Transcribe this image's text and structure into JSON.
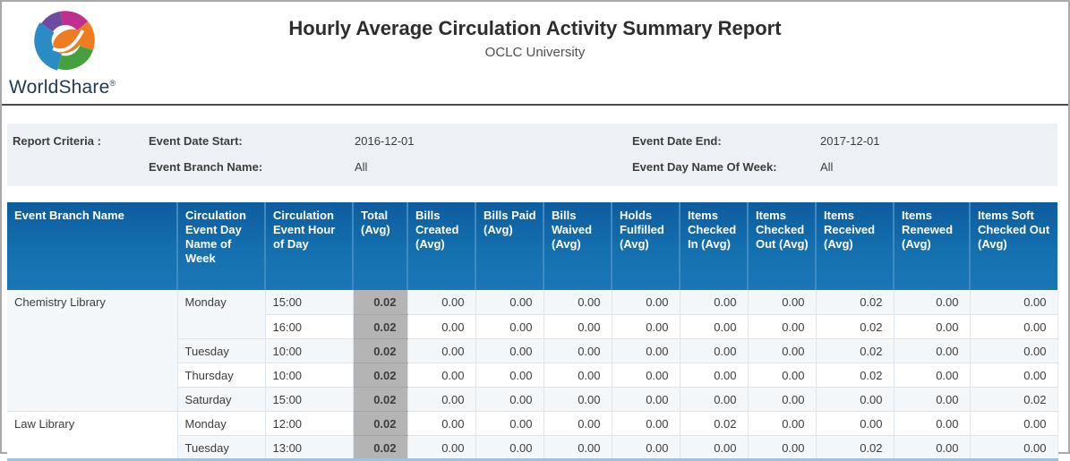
{
  "brand": {
    "name": "WorldShare",
    "registered_mark": "®",
    "logo": "worldshare-globe-logo"
  },
  "header": {
    "title": "Hourly Average Circulation Activity Summary Report",
    "subtitle": "OCLC University"
  },
  "criteria": {
    "section_label": "Report Criteria :",
    "fields": [
      {
        "label": "Event Date Start:",
        "value": "2016-12-01"
      },
      {
        "label": "Event Date End:",
        "value": "2017-12-01"
      },
      {
        "label": "Event Branch Name:",
        "value": "All"
      },
      {
        "label": "Event Day Name Of Week:",
        "value": "All"
      }
    ]
  },
  "table": {
    "columns": [
      "Event Branch Name",
      "Circulation Event Day Name of Week",
      "Circulation Event Hour of Day",
      "Total (Avg)",
      "Bills Created (Avg)",
      "Bills Paid (Avg)",
      "Bills Waived (Avg)",
      "Holds Fulfilled (Avg)",
      "Items Checked In (Avg)",
      "Items Checked Out (Avg)",
      "Items Received (Avg)",
      "Items Renewed (Avg)",
      "Items Soft Checked Out (Avg)"
    ],
    "rows": [
      {
        "branch": "Chemistry Library",
        "branch_span": 5,
        "day": "Monday",
        "day_span": 2,
        "hour": "15:00",
        "total": "0.02",
        "values": [
          "0.00",
          "0.00",
          "0.00",
          "0.00",
          "0.00",
          "0.00",
          "0.02",
          "0.00",
          "0.00"
        ]
      },
      {
        "hour": "16:00",
        "total": "0.02",
        "values": [
          "0.00",
          "0.00",
          "0.00",
          "0.00",
          "0.00",
          "0.00",
          "0.02",
          "0.00",
          "0.00"
        ]
      },
      {
        "day": "Tuesday",
        "day_span": 1,
        "hour": "10:00",
        "total": "0.02",
        "values": [
          "0.00",
          "0.00",
          "0.00",
          "0.00",
          "0.00",
          "0.00",
          "0.02",
          "0.00",
          "0.00"
        ]
      },
      {
        "day": "Thursday",
        "day_span": 1,
        "hour": "10:00",
        "total": "0.02",
        "values": [
          "0.00",
          "0.00",
          "0.00",
          "0.00",
          "0.00",
          "0.00",
          "0.02",
          "0.00",
          "0.00"
        ]
      },
      {
        "day": "Saturday",
        "day_span": 1,
        "hour": "15:00",
        "total": "0.02",
        "values": [
          "0.00",
          "0.00",
          "0.00",
          "0.00",
          "0.00",
          "0.00",
          "0.00",
          "0.00",
          "0.02"
        ]
      },
      {
        "branch": "Law Library",
        "branch_span": 2,
        "day": "Monday",
        "day_span": 1,
        "hour": "12:00",
        "total": "0.02",
        "values": [
          "0.00",
          "0.00",
          "0.00",
          "0.00",
          "0.02",
          "0.00",
          "0.00",
          "0.00",
          "0.00"
        ]
      },
      {
        "day": "Tuesday",
        "day_span": 1,
        "hour": "13:00",
        "total": "0.02",
        "values": [
          "0.00",
          "0.00",
          "0.00",
          "0.00",
          "0.00",
          "0.00",
          "0.02",
          "0.00",
          "0.00"
        ]
      }
    ]
  },
  "colors": {
    "header_blue_top": "#0d5c9e",
    "header_blue_mid": "#1470af",
    "header_blue_bottom": "#1a76b6",
    "total_column_gray": "#b4b4b4",
    "row_stripe": "#f4f7fa",
    "criteria_background": "#edf1f6",
    "logo_blue": "#2b8cc4",
    "logo_purple": "#6d4ba0",
    "logo_magenta": "#c02e8f",
    "logo_orange": "#ee7c22",
    "logo_green": "#44a13d",
    "brand_text": "#1f3a52"
  }
}
